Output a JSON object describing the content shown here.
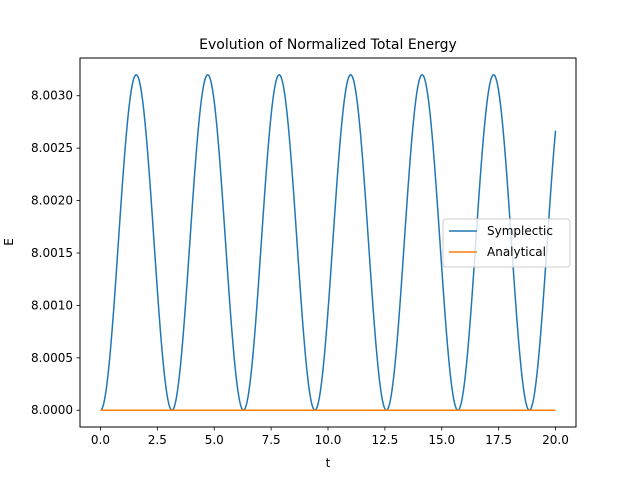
{
  "chart_data": {
    "type": "line",
    "title": "Evolution of Normalized Total Energy",
    "xlabel": "t",
    "ylabel": "E",
    "xlim": [
      -0.9,
      20.9
    ],
    "ylim": [
      7.99984,
      8.00336
    ],
    "xticks": [
      0,
      2.5,
      5,
      7.5,
      10,
      12.5,
      15,
      17.5,
      20
    ],
    "xtick_labels": [
      "0.0",
      "2.5",
      "5.0",
      "7.5",
      "10.0",
      "12.5",
      "15.0",
      "17.5",
      "20.0"
    ],
    "yticks": [
      8.0,
      8.0005,
      8.001,
      8.0015,
      8.002,
      8.0025,
      8.003
    ],
    "ytick_labels": [
      "8.0000",
      "8.0005",
      "8.0010",
      "8.0015",
      "8.0020",
      "8.0025",
      "8.0030"
    ],
    "grid": false,
    "legend_position": "center-right",
    "series": [
      {
        "name": "Symplectic",
        "color": "#1f77b4",
        "x": [
          0.0,
          0.8,
          1.57,
          2.36,
          3.14,
          3.93,
          4.71,
          5.5,
          6.28,
          7.07,
          7.85,
          8.64,
          9.42,
          10.21,
          10.99,
          11.78,
          12.57,
          13.35,
          14.14,
          14.92,
          15.71,
          16.49,
          17.28,
          18.06,
          18.85,
          19.63,
          20.0
        ],
        "y": [
          8.0,
          8.0016,
          8.0032,
          8.0016,
          8.0,
          8.0016,
          8.0032,
          8.0016,
          8.0,
          8.0016,
          8.0032,
          8.0016,
          8.0,
          8.0016,
          8.0032,
          8.0016,
          8.0,
          8.0016,
          8.0032,
          8.0016,
          8.0,
          8.0016,
          8.0032,
          8.0016,
          8.0,
          8.0016,
          8.00267
        ]
      },
      {
        "name": "Analytical",
        "color": "#ff7f0e",
        "x": [
          0.0,
          20.0
        ],
        "y": [
          8.0,
          8.0
        ]
      }
    ]
  }
}
